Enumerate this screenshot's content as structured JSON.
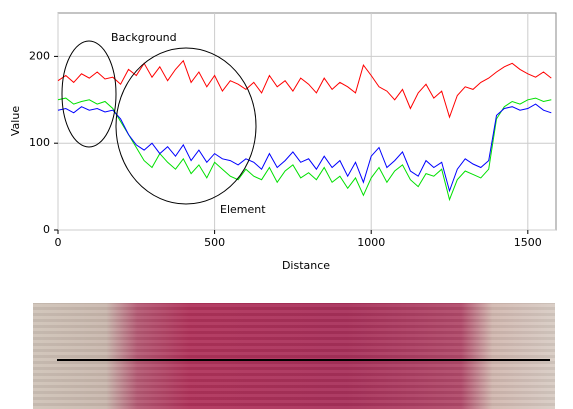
{
  "chart_data": {
    "type": "line",
    "xlabel": "Distance",
    "ylabel": "Value",
    "annotations": [
      "Background",
      "Element"
    ],
    "x": [
      0,
      25,
      50,
      75,
      100,
      125,
      150,
      175,
      200,
      225,
      250,
      275,
      300,
      325,
      350,
      375,
      400,
      425,
      450,
      475,
      500,
      525,
      550,
      575,
      600,
      625,
      650,
      675,
      700,
      725,
      750,
      775,
      800,
      825,
      850,
      875,
      900,
      925,
      950,
      975,
      1000,
      1025,
      1050,
      1075,
      1100,
      1125,
      1150,
      1175,
      1200,
      1225,
      1250,
      1275,
      1300,
      1325,
      1350,
      1375,
      1400,
      1425,
      1450,
      1475,
      1500,
      1525,
      1550,
      1575
    ],
    "series": [
      {
        "color": "#ff0000",
        "values": [
          172,
          178,
          170,
          180,
          175,
          182,
          174,
          176,
          168,
          185,
          178,
          192,
          176,
          188,
          172,
          185,
          195,
          170,
          182,
          165,
          178,
          160,
          172,
          168,
          162,
          170,
          158,
          178,
          165,
          172,
          160,
          175,
          168,
          158,
          175,
          162,
          170,
          165,
          158,
          190,
          178,
          165,
          160,
          150,
          162,
          140,
          158,
          168,
          152,
          160,
          130,
          155,
          165,
          162,
          170,
          175,
          182,
          188,
          192,
          185,
          180,
          176,
          182,
          175
        ]
      },
      {
        "color": "#00e000",
        "values": [
          150,
          152,
          145,
          148,
          150,
          145,
          148,
          140,
          125,
          110,
          95,
          80,
          72,
          88,
          78,
          70,
          82,
          65,
          75,
          60,
          78,
          70,
          62,
          58,
          70,
          62,
          58,
          72,
          55,
          68,
          75,
          60,
          66,
          58,
          72,
          55,
          62,
          48,
          60,
          40,
          60,
          72,
          55,
          68,
          75,
          58,
          50,
          65,
          62,
          70,
          35,
          58,
          68,
          64,
          60,
          70,
          128,
          142,
          148,
          145,
          150,
          152,
          148,
          150
        ]
      },
      {
        "color": "#0000ff",
        "values": [
          138,
          140,
          135,
          142,
          138,
          140,
          136,
          138,
          128,
          110,
          98,
          92,
          100,
          88,
          96,
          85,
          98,
          80,
          92,
          78,
          88,
          82,
          80,
          75,
          82,
          78,
          70,
          88,
          72,
          80,
          90,
          78,
          82,
          70,
          85,
          72,
          80,
          62,
          78,
          55,
          85,
          95,
          72,
          80,
          90,
          68,
          62,
          80,
          72,
          78,
          45,
          70,
          82,
          76,
          72,
          80,
          132,
          140,
          142,
          138,
          140,
          145,
          138,
          135
        ]
      }
    ],
    "xlim": [
      0,
      1590
    ],
    "ylim": [
      0,
      250
    ],
    "xticks": [
      0,
      500,
      1000,
      1500
    ],
    "yticks": [
      0,
      100,
      200
    ],
    "grid": true
  }
}
